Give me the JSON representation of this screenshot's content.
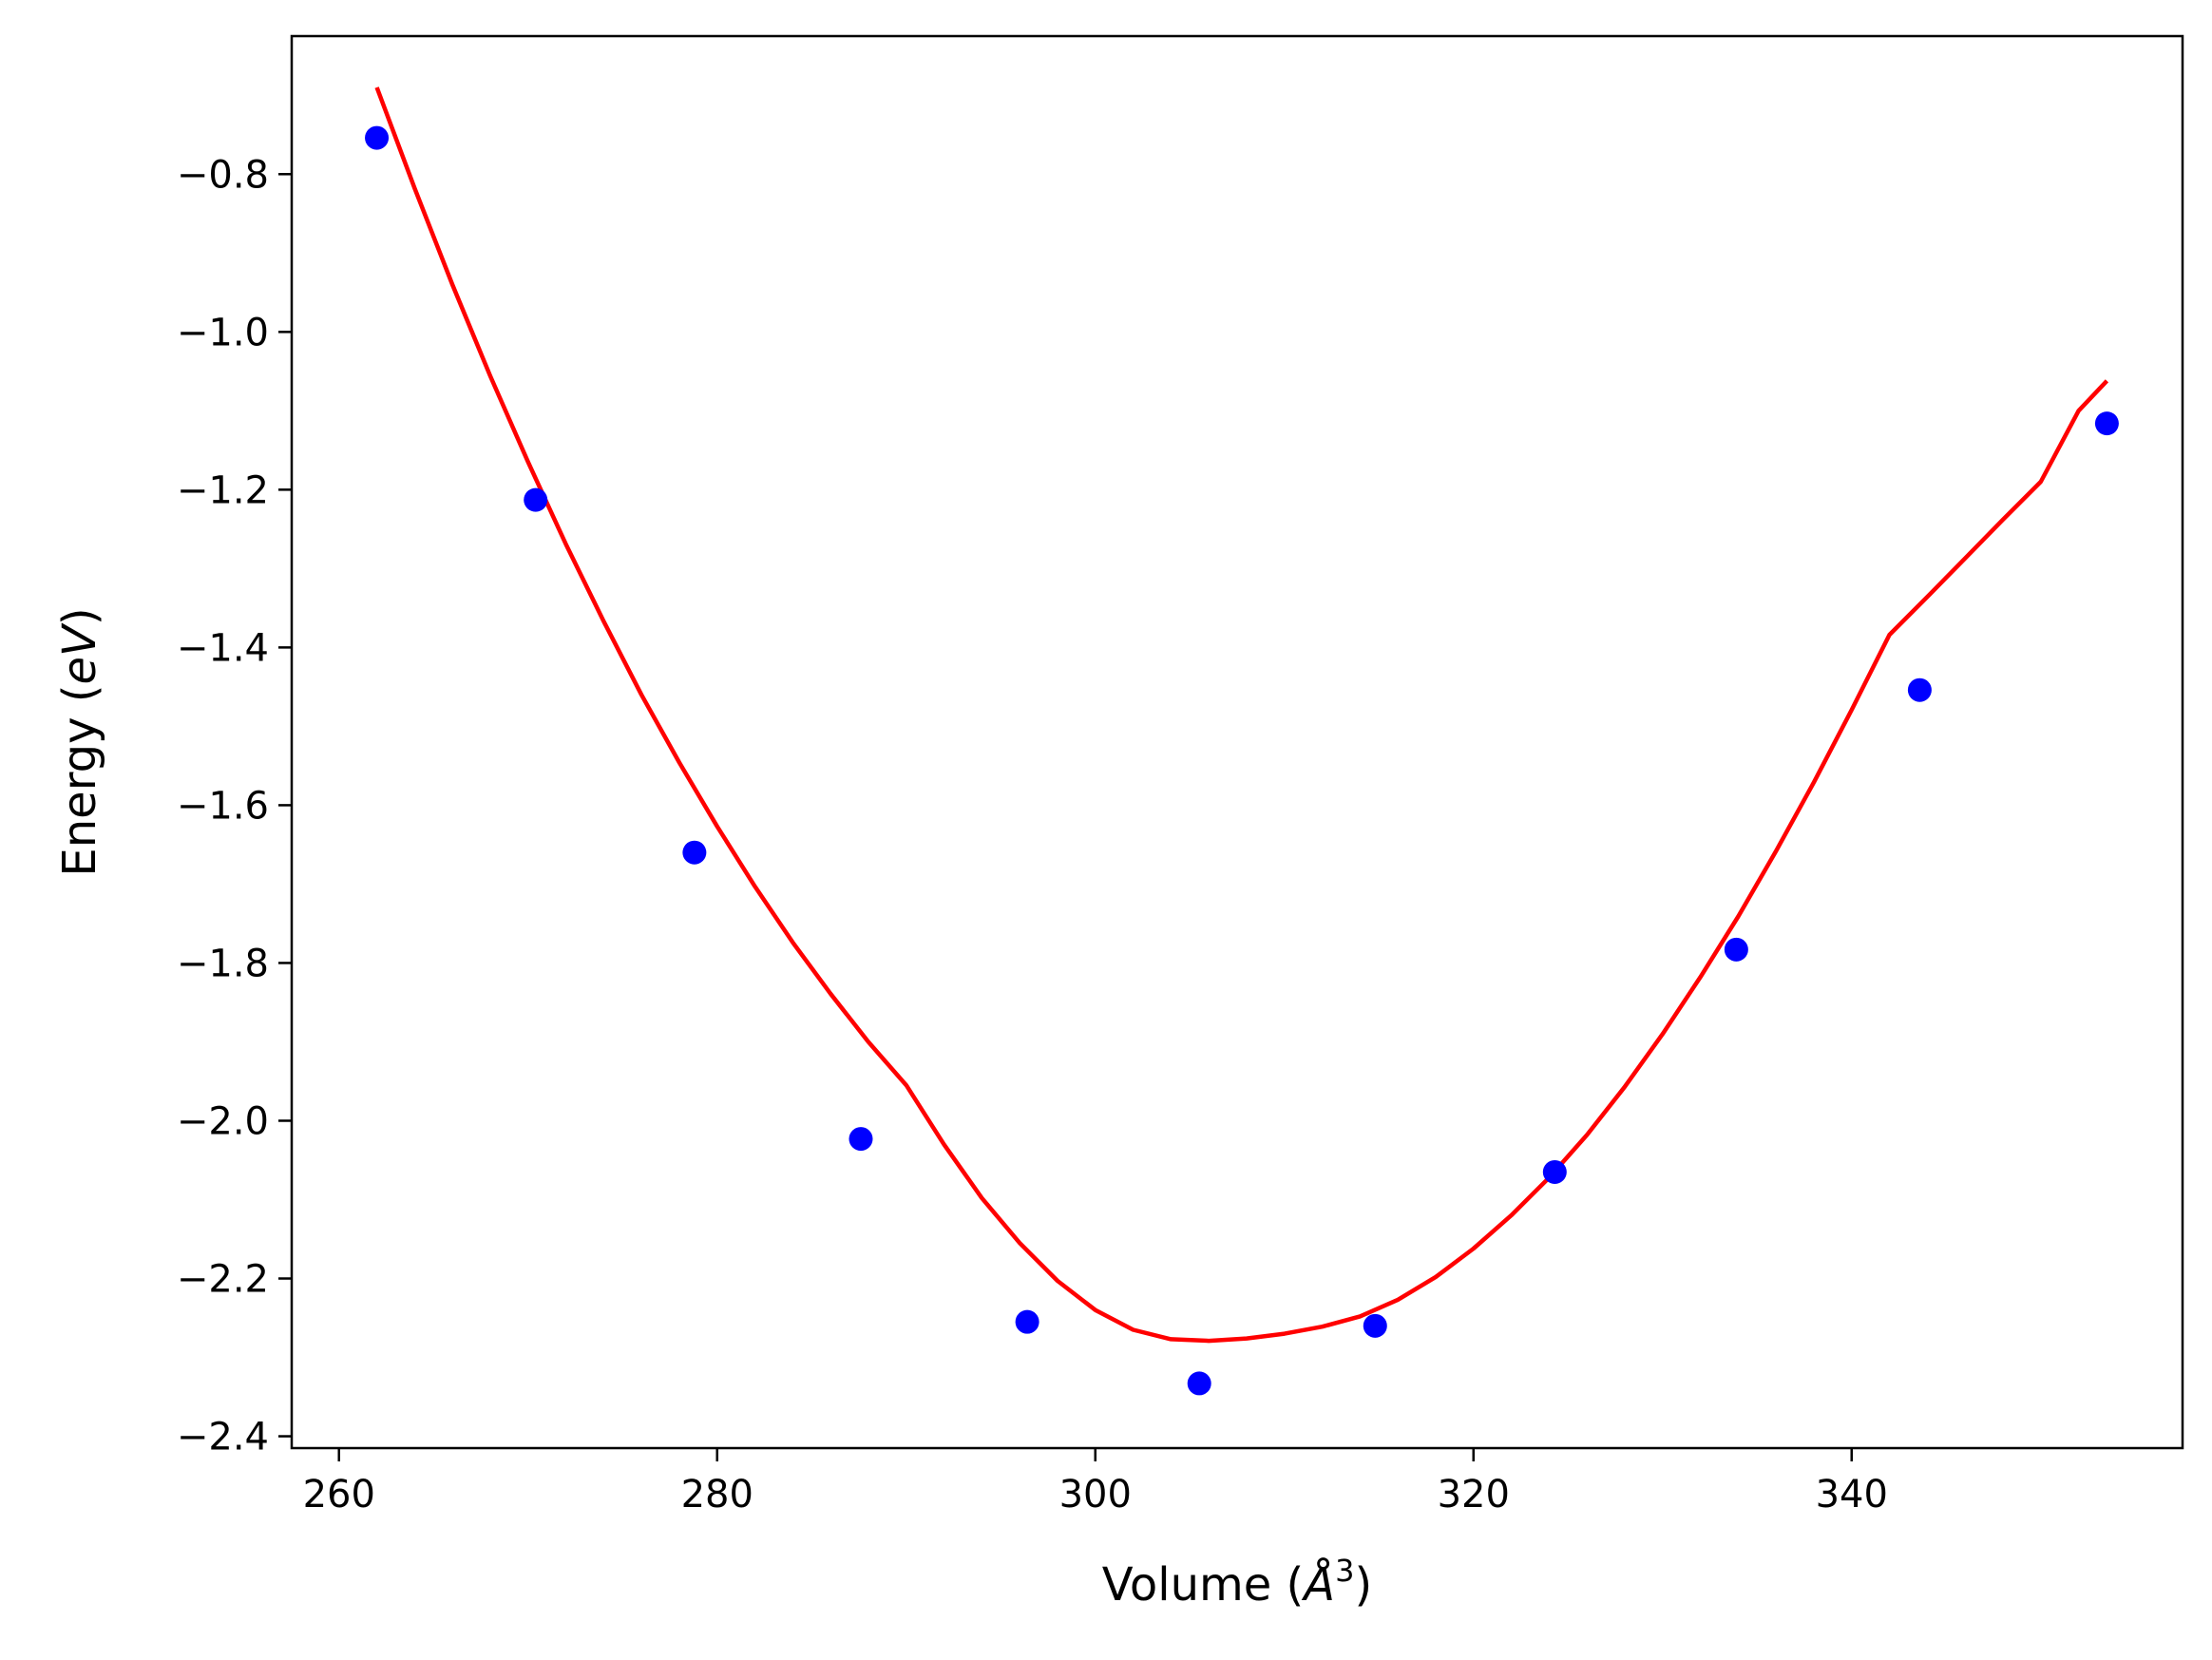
{
  "chart_data": {
    "type": "scatter",
    "xlabel": "Volume (Å³)",
    "xlabel_parts": {
      "pre": "Volume (",
      "symbol": "Å",
      "sup": "3",
      "post": ")"
    },
    "ylabel": "Energy (eV)",
    "ylabel_parts": {
      "pre": "Energy (",
      "unit": "eV",
      "post": ")"
    },
    "xlim": [
      257.5,
      357.5
    ],
    "ylim": [
      -2.415,
      -0.625
    ],
    "xticks": [
      260,
      280,
      300,
      320,
      340
    ],
    "xtick_labels": [
      "260",
      "280",
      "300",
      "320",
      "340"
    ],
    "yticks": [
      -2.4,
      -2.2,
      -2.0,
      -1.8,
      -1.6,
      -1.4,
      -1.2,
      -1.0,
      -0.8
    ],
    "ytick_labels": [
      "−2.4",
      "−2.2",
      "−2.0",
      "−1.8",
      "−1.6",
      "−1.4",
      "−1.2",
      "−1.0",
      "−0.8"
    ],
    "grid": false,
    "series": [
      {
        "kind": "points",
        "color": "#0000ff",
        "x": [
          262.0,
          270.4,
          278.8,
          287.6,
          296.4,
          305.5,
          314.8,
          324.3,
          333.9,
          343.6,
          353.5
        ],
        "y": [
          -0.754,
          -1.213,
          -1.66,
          -2.023,
          -2.255,
          -2.333,
          -2.26,
          -2.065,
          -1.783,
          -1.454,
          -1.116
        ]
      },
      {
        "kind": "fit-curve",
        "color": "#ff0000",
        "x": [
          262,
          264,
          266,
          268,
          270,
          272,
          274,
          276,
          278,
          280,
          282,
          284,
          286,
          288,
          290,
          292,
          294,
          296,
          298,
          300,
          302,
          304,
          306,
          308,
          310,
          312,
          314,
          316,
          318,
          320,
          322,
          324,
          326,
          328,
          330,
          332,
          334,
          336,
          338,
          340,
          342,
          344,
          346,
          348,
          350,
          352,
          353.5
        ],
        "y": [
          -0.69,
          -0.818,
          -0.94,
          -1.056,
          -1.165,
          -1.269,
          -1.367,
          -1.46,
          -1.546,
          -1.627,
          -1.703,
          -1.774,
          -1.839,
          -1.9,
          -1.955,
          -2.03,
          -2.098,
          -2.155,
          -2.203,
          -2.24,
          -2.265,
          -2.277,
          -2.279,
          -2.276,
          -2.27,
          -2.261,
          -2.248,
          -2.227,
          -2.198,
          -2.162,
          -2.12,
          -2.072,
          -2.018,
          -1.957,
          -1.89,
          -1.818,
          -1.741,
          -1.658,
          -1.571,
          -1.479,
          -1.384,
          -1.336,
          -1.287,
          -1.238,
          -1.19,
          -1.1,
          -1.062
        ]
      }
    ]
  }
}
